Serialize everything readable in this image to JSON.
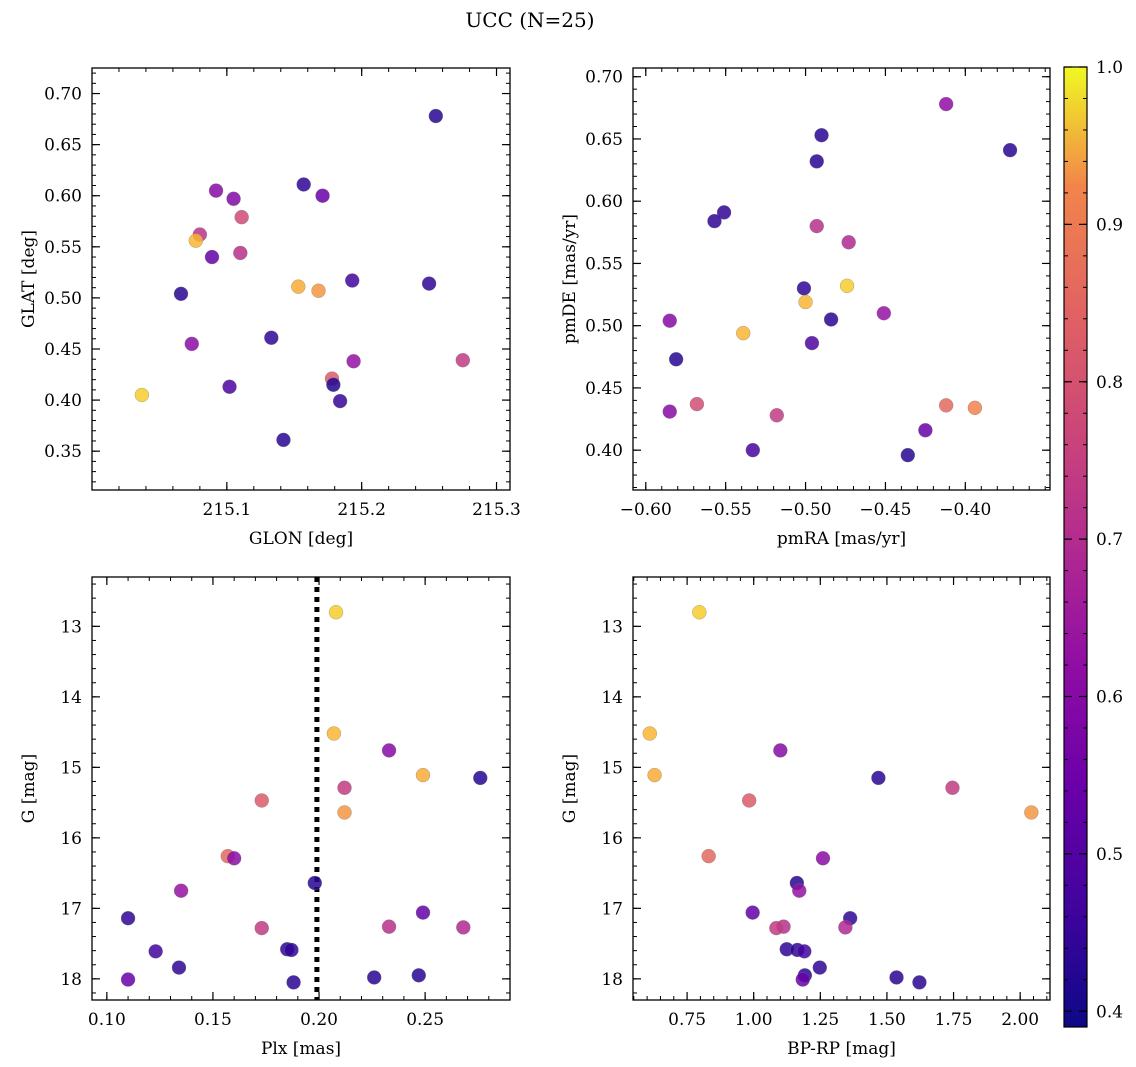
{
  "figure": {
    "title": "UCC (N=25)"
  },
  "colorbar": {
    "cmap": "plasma",
    "range": [
      0.39,
      1.0
    ],
    "ticks": [
      0.4,
      0.5,
      0.6,
      0.7,
      0.8,
      0.9,
      1.0
    ],
    "tick_labels": [
      "0.4",
      "0.5",
      "0.6",
      "0.7",
      "0.8",
      "0.9",
      "1.0"
    ]
  },
  "chart_data": [
    {
      "type": "scatter",
      "id": "glon-glat",
      "xlabel": "GLON [deg]",
      "ylabel": "GLAT [deg]",
      "xlim": [
        215.0,
        215.31
      ],
      "ylim": [
        0.312,
        0.725
      ],
      "y_inverted": false,
      "xticks": [
        215.1,
        215.2,
        215.3
      ],
      "xtick_labels": [
        "215.1",
        "215.2",
        "215.3"
      ],
      "yticks": [
        0.35,
        0.4,
        0.45,
        0.5,
        0.55,
        0.6,
        0.65,
        0.7
      ],
      "ytick_labels": [
        "0.35",
        "0.40",
        "0.45",
        "0.50",
        "0.55",
        "0.60",
        "0.65",
        "0.70"
      ],
      "points": [
        {
          "x": 215.255,
          "y": 0.678,
          "c": 0.43
        },
        {
          "x": 215.157,
          "y": 0.611,
          "c": 0.44
        },
        {
          "x": 215.171,
          "y": 0.6,
          "c": 0.54
        },
        {
          "x": 215.092,
          "y": 0.605,
          "c": 0.6
        },
        {
          "x": 215.105,
          "y": 0.597,
          "c": 0.59
        },
        {
          "x": 215.111,
          "y": 0.579,
          "c": 0.78
        },
        {
          "x": 215.08,
          "y": 0.562,
          "c": 0.72
        },
        {
          "x": 215.077,
          "y": 0.556,
          "c": 0.97
        },
        {
          "x": 215.11,
          "y": 0.544,
          "c": 0.71
        },
        {
          "x": 215.089,
          "y": 0.54,
          "c": 0.53
        },
        {
          "x": 215.193,
          "y": 0.517,
          "c": 0.47
        },
        {
          "x": 215.25,
          "y": 0.514,
          "c": 0.44
        },
        {
          "x": 215.153,
          "y": 0.511,
          "c": 0.96
        },
        {
          "x": 215.168,
          "y": 0.507,
          "c": 0.94
        },
        {
          "x": 215.066,
          "y": 0.504,
          "c": 0.43
        },
        {
          "x": 215.133,
          "y": 0.461,
          "c": 0.44
        },
        {
          "x": 215.074,
          "y": 0.455,
          "c": 0.61
        },
        {
          "x": 215.194,
          "y": 0.438,
          "c": 0.63
        },
        {
          "x": 215.275,
          "y": 0.439,
          "c": 0.74
        },
        {
          "x": 215.178,
          "y": 0.421,
          "c": 0.82
        },
        {
          "x": 215.179,
          "y": 0.415,
          "c": 0.42
        },
        {
          "x": 215.102,
          "y": 0.413,
          "c": 0.49
        },
        {
          "x": 215.037,
          "y": 0.405,
          "c": 0.98
        },
        {
          "x": 215.184,
          "y": 0.399,
          "c": 0.45
        },
        {
          "x": 215.142,
          "y": 0.361,
          "c": 0.43
        }
      ]
    },
    {
      "type": "scatter",
      "id": "pmra-pmde",
      "xlabel": "pmRA [mas/yr]",
      "ylabel": "pmDE [mas/yr]",
      "xlim": [
        -0.608,
        -0.347
      ],
      "ylim": [
        0.368,
        0.707
      ],
      "y_inverted": false,
      "xticks": [
        -0.6,
        -0.55,
        -0.5,
        -0.45,
        -0.4
      ],
      "xtick_labels": [
        "−0.60",
        "−0.55",
        "−0.50",
        "−0.45",
        "−0.40"
      ],
      "yticks": [
        0.4,
        0.45,
        0.5,
        0.55,
        0.6,
        0.65,
        0.7
      ],
      "ytick_labels": [
        "0.40",
        "0.45",
        "0.50",
        "0.55",
        "0.60",
        "0.65",
        "0.70"
      ],
      "points": [
        {
          "x": -0.412,
          "y": 0.678,
          "c": 0.62
        },
        {
          "x": -0.49,
          "y": 0.653,
          "c": 0.43
        },
        {
          "x": -0.493,
          "y": 0.632,
          "c": 0.43
        },
        {
          "x": -0.372,
          "y": 0.641,
          "c": 0.43
        },
        {
          "x": -0.551,
          "y": 0.591,
          "c": 0.44
        },
        {
          "x": -0.557,
          "y": 0.584,
          "c": 0.44
        },
        {
          "x": -0.493,
          "y": 0.58,
          "c": 0.71
        },
        {
          "x": -0.473,
          "y": 0.567,
          "c": 0.69
        },
        {
          "x": -0.474,
          "y": 0.532,
          "c": 0.98
        },
        {
          "x": -0.501,
          "y": 0.53,
          "c": 0.44
        },
        {
          "x": -0.5,
          "y": 0.519,
          "c": 0.97
        },
        {
          "x": -0.451,
          "y": 0.51,
          "c": 0.63
        },
        {
          "x": -0.484,
          "y": 0.505,
          "c": 0.43
        },
        {
          "x": -0.585,
          "y": 0.504,
          "c": 0.6
        },
        {
          "x": -0.539,
          "y": 0.494,
          "c": 0.97
        },
        {
          "x": -0.496,
          "y": 0.486,
          "c": 0.49
        },
        {
          "x": -0.581,
          "y": 0.473,
          "c": 0.43
        },
        {
          "x": -0.568,
          "y": 0.437,
          "c": 0.79
        },
        {
          "x": -0.412,
          "y": 0.436,
          "c": 0.86
        },
        {
          "x": -0.394,
          "y": 0.434,
          "c": 0.92
        },
        {
          "x": -0.585,
          "y": 0.431,
          "c": 0.6
        },
        {
          "x": -0.518,
          "y": 0.428,
          "c": 0.74
        },
        {
          "x": -0.425,
          "y": 0.416,
          "c": 0.54
        },
        {
          "x": -0.533,
          "y": 0.4,
          "c": 0.48
        },
        {
          "x": -0.436,
          "y": 0.396,
          "c": 0.43
        }
      ]
    },
    {
      "type": "scatter",
      "id": "plx-g",
      "xlabel": "Plx [mas]",
      "ylabel": "G [mag]",
      "xlim": [
        0.093,
        0.29
      ],
      "ylim": [
        12.3,
        18.3
      ],
      "y_inverted": true,
      "vline": {
        "x": 0.199,
        "style": "dotted"
      },
      "xticks": [
        0.1,
        0.15,
        0.2,
        0.25
      ],
      "xtick_labels": [
        "0.10",
        "0.15",
        "0.20",
        "0.25"
      ],
      "yticks": [
        13,
        14,
        15,
        16,
        17,
        18
      ],
      "ytick_labels": [
        "13",
        "14",
        "15",
        "16",
        "17",
        "18"
      ],
      "points": [
        {
          "x": 0.208,
          "y": 12.8,
          "c": 0.98
        },
        {
          "x": 0.207,
          "y": 14.52,
          "c": 0.97
        },
        {
          "x": 0.233,
          "y": 14.76,
          "c": 0.6
        },
        {
          "x": 0.249,
          "y": 15.11,
          "c": 0.96
        },
        {
          "x": 0.276,
          "y": 15.15,
          "c": 0.43
        },
        {
          "x": 0.212,
          "y": 15.29,
          "c": 0.74
        },
        {
          "x": 0.173,
          "y": 15.47,
          "c": 0.82
        },
        {
          "x": 0.212,
          "y": 15.64,
          "c": 0.94
        },
        {
          "x": 0.157,
          "y": 16.26,
          "c": 0.86
        },
        {
          "x": 0.16,
          "y": 16.29,
          "c": 0.61
        },
        {
          "x": 0.198,
          "y": 16.64,
          "c": 0.43
        },
        {
          "x": 0.135,
          "y": 16.75,
          "c": 0.63
        },
        {
          "x": 0.249,
          "y": 17.06,
          "c": 0.53
        },
        {
          "x": 0.11,
          "y": 17.14,
          "c": 0.44
        },
        {
          "x": 0.233,
          "y": 17.26,
          "c": 0.71
        },
        {
          "x": 0.173,
          "y": 17.28,
          "c": 0.74
        },
        {
          "x": 0.268,
          "y": 17.27,
          "c": 0.69
        },
        {
          "x": 0.185,
          "y": 17.58,
          "c": 0.44
        },
        {
          "x": 0.187,
          "y": 17.59,
          "c": 0.44
        },
        {
          "x": 0.123,
          "y": 17.61,
          "c": 0.47
        },
        {
          "x": 0.134,
          "y": 17.84,
          "c": 0.44
        },
        {
          "x": 0.226,
          "y": 17.98,
          "c": 0.43
        },
        {
          "x": 0.247,
          "y": 17.95,
          "c": 0.43
        },
        {
          "x": 0.11,
          "y": 18.01,
          "c": 0.54
        },
        {
          "x": 0.188,
          "y": 18.05,
          "c": 0.43
        }
      ]
    },
    {
      "type": "scatter",
      "id": "bprp-g",
      "xlabel": "BP-RP [mag]",
      "ylabel": "G [mag]",
      "xlim": [
        0.547,
        2.112
      ],
      "ylim": [
        12.3,
        18.3
      ],
      "y_inverted": true,
      "xticks": [
        0.75,
        1.0,
        1.25,
        1.5,
        1.75,
        2.0
      ],
      "xtick_labels": [
        "0.75",
        "1.00",
        "1.25",
        "1.50",
        "1.75",
        "2.00"
      ],
      "yticks": [
        13,
        14,
        15,
        16,
        17,
        18
      ],
      "ytick_labels": [
        "13",
        "14",
        "15",
        "16",
        "17",
        "18"
      ],
      "points": [
        {
          "x": 0.796,
          "y": 12.8,
          "c": 0.98
        },
        {
          "x": 0.61,
          "y": 14.52,
          "c": 0.97
        },
        {
          "x": 1.1,
          "y": 14.76,
          "c": 0.6
        },
        {
          "x": 0.628,
          "y": 15.11,
          "c": 0.96
        },
        {
          "x": 1.468,
          "y": 15.15,
          "c": 0.43
        },
        {
          "x": 1.746,
          "y": 15.29,
          "c": 0.74
        },
        {
          "x": 0.983,
          "y": 15.47,
          "c": 0.82
        },
        {
          "x": 2.042,
          "y": 15.64,
          "c": 0.94
        },
        {
          "x": 0.831,
          "y": 16.26,
          "c": 0.86
        },
        {
          "x": 1.26,
          "y": 16.29,
          "c": 0.61
        },
        {
          "x": 1.162,
          "y": 16.64,
          "c": 0.43
        },
        {
          "x": 1.171,
          "y": 16.75,
          "c": 0.63
        },
        {
          "x": 0.996,
          "y": 17.06,
          "c": 0.53
        },
        {
          "x": 1.362,
          "y": 17.14,
          "c": 0.44
        },
        {
          "x": 1.112,
          "y": 17.26,
          "c": 0.71
        },
        {
          "x": 1.085,
          "y": 17.28,
          "c": 0.74
        },
        {
          "x": 1.344,
          "y": 17.27,
          "c": 0.69
        },
        {
          "x": 1.124,
          "y": 17.58,
          "c": 0.44
        },
        {
          "x": 1.164,
          "y": 17.59,
          "c": 0.44
        },
        {
          "x": 1.19,
          "y": 17.61,
          "c": 0.47
        },
        {
          "x": 1.248,
          "y": 17.84,
          "c": 0.44
        },
        {
          "x": 1.192,
          "y": 17.95,
          "c": 0.43
        },
        {
          "x": 1.184,
          "y": 18.01,
          "c": 0.54
        },
        {
          "x": 1.536,
          "y": 17.98,
          "c": 0.43
        },
        {
          "x": 1.622,
          "y": 18.05,
          "c": 0.43
        }
      ]
    }
  ]
}
